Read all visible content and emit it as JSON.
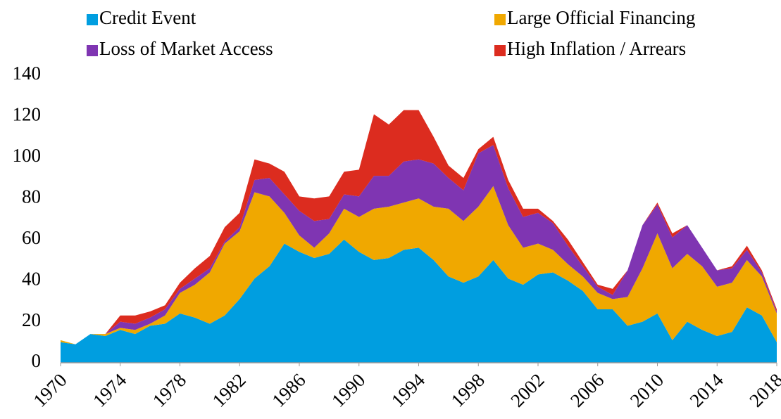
{
  "chart_data": {
    "type": "stacked-area",
    "x": [
      1970,
      1971,
      1972,
      1973,
      1974,
      1975,
      1976,
      1977,
      1978,
      1979,
      1980,
      1981,
      1982,
      1983,
      1984,
      1985,
      1986,
      1987,
      1988,
      1989,
      1990,
      1991,
      1992,
      1993,
      1994,
      1995,
      1996,
      1997,
      1998,
      1999,
      2000,
      2001,
      2002,
      2003,
      2004,
      2005,
      2006,
      2007,
      2008,
      2009,
      2010,
      2011,
      2012,
      2013,
      2014,
      2015,
      2016,
      2017,
      2018
    ],
    "series": [
      {
        "name": "Credit Event",
        "color": "#009ee0",
        "values": [
          10,
          9,
          14,
          13,
          16,
          14,
          18,
          19,
          24,
          22,
          19,
          23,
          31,
          41,
          47,
          58,
          54,
          51,
          53,
          60,
          54,
          50,
          51,
          55,
          56,
          50,
          42,
          39,
          42,
          50,
          41,
          38,
          43,
          44,
          40,
          35,
          26,
          26,
          18,
          20,
          24,
          11,
          20,
          16,
          13,
          15,
          27,
          23,
          10
        ]
      },
      {
        "name": "Large Official Financing",
        "color": "#f0a800",
        "values": [
          1,
          0,
          0,
          1,
          1,
          2,
          1,
          4,
          10,
          16,
          25,
          35,
          33,
          42,
          34,
          15,
          8,
          5,
          10,
          15,
          17,
          25,
          25,
          23,
          24,
          26,
          33,
          30,
          34,
          36,
          26,
          18,
          15,
          11,
          8,
          7,
          8,
          5,
          14,
          26,
          39,
          35,
          33,
          31,
          24,
          24,
          23,
          19,
          14
        ]
      },
      {
        "name": "Loss of Market Access",
        "color": "#7f35b2",
        "values": [
          0,
          0,
          0,
          0,
          3,
          3,
          3,
          3,
          2,
          3,
          2,
          1,
          2,
          6,
          9,
          9,
          12,
          13,
          7,
          7,
          10,
          16,
          15,
          20,
          19,
          21,
          15,
          15,
          26,
          20,
          18,
          15,
          15,
          13,
          9,
          5,
          3,
          2,
          13,
          21,
          14,
          15,
          14,
          9,
          8,
          7,
          5,
          2,
          1
        ]
      },
      {
        "name": "High Inflation / Arrears",
        "color": "#dc2c1f",
        "values": [
          0,
          0,
          0,
          0,
          3,
          4,
          3,
          2,
          3,
          5,
          6,
          7,
          7,
          10,
          7,
          11,
          7,
          11,
          11,
          11,
          13,
          30,
          25,
          25,
          24,
          13,
          6,
          6,
          2,
          4,
          4,
          4,
          2,
          1,
          3,
          2,
          1,
          3,
          0,
          0,
          1,
          2,
          0,
          0,
          0,
          1,
          2,
          1,
          1
        ]
      }
    ],
    "xlim": [
      1970,
      2018
    ],
    "xticks": [
      1970,
      1974,
      1978,
      1982,
      1986,
      1990,
      1994,
      1998,
      2002,
      2006,
      2010,
      2014,
      2018
    ],
    "ylim": [
      0,
      140
    ],
    "yticks": [
      0,
      20,
      40,
      60,
      80,
      100,
      120,
      140
    ]
  }
}
